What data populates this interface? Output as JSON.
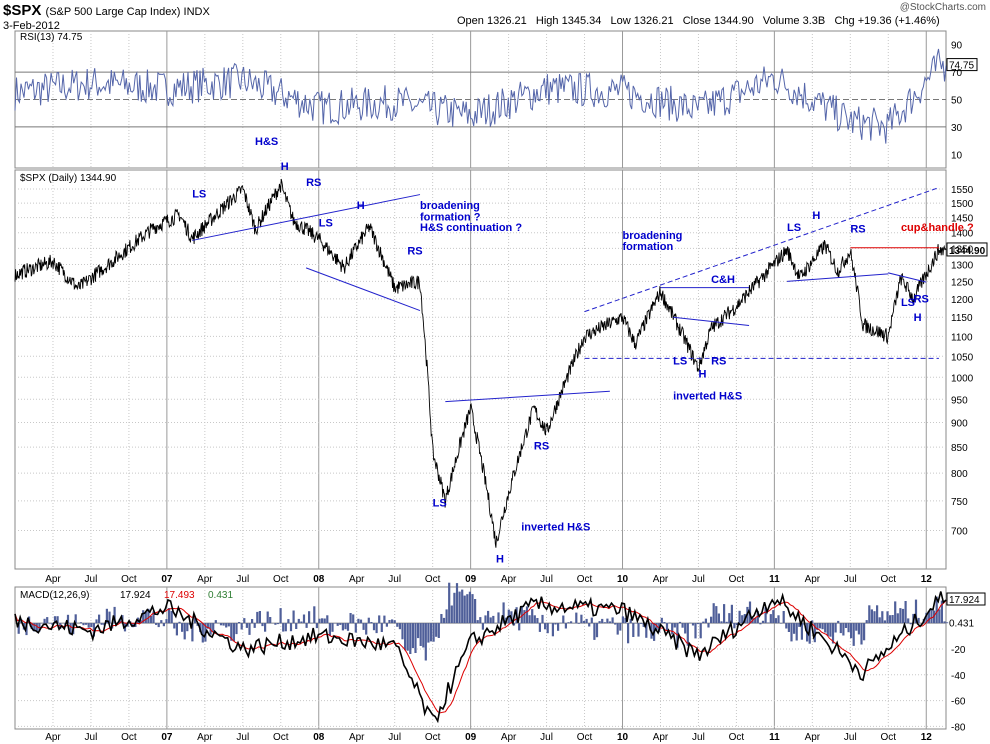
{
  "header": {
    "symbol": "$SPX",
    "name": "(S&P 500 Large Cap Index) INDX",
    "date": "3-Feb-2012",
    "watermark": "@StockCharts.com",
    "open_label": "Open",
    "open": "1326.21",
    "high_label": "High",
    "high": "1345.34",
    "low_label": "Low",
    "low": "1326.21",
    "close_label": "Close",
    "close": "1344.90",
    "volume_label": "Volume",
    "volume": "3.3B",
    "chg_label": "Chg",
    "chg": "+19.36 (+1.46%)"
  },
  "colors": {
    "price": "#000000",
    "annotation": "#0000cc",
    "trendline": "#2222cc",
    "red": "#dd0000",
    "rsi": "#5566aa",
    "macd": "#000000",
    "signal": "#dd0000",
    "histogram": "#4f5f99",
    "grid": "#c8c8c8",
    "bg": "#ffffff"
  },
  "chart_data": [
    {
      "type": "line",
      "panel": "rsi",
      "legend": "RSI(13) 74.75",
      "current_label": "74.75",
      "ylim": [
        0,
        100
      ],
      "yticks": [
        10,
        30,
        50,
        70,
        90
      ],
      "reference_lines": [
        30,
        50,
        70
      ],
      "x": [
        "2006-01",
        "2006-07",
        "2007-01",
        "2007-07",
        "2008-01",
        "2008-07",
        "2009-01",
        "2009-07",
        "2010-01",
        "2010-07",
        "2011-01",
        "2011-07",
        "2011-10",
        "2012-02"
      ],
      "values": [
        55,
        62,
        58,
        64,
        44,
        48,
        38,
        58,
        56,
        42,
        66,
        34,
        30,
        74.75
      ]
    },
    {
      "type": "line",
      "panel": "price",
      "legend": "$SPX (Daily) 1344.90",
      "current_label": "1344.90",
      "scale": "log",
      "ylim": [
        640,
        1620
      ],
      "yticks": [
        700,
        750,
        800,
        850,
        900,
        950,
        1000,
        1050,
        1100,
        1150,
        1200,
        1250,
        1300,
        1350,
        1400,
        1450,
        1500,
        1550
      ],
      "x": [
        "2006-01",
        "2006-04",
        "2006-06",
        "2006-09",
        "2006-12",
        "2007-02",
        "2007-03",
        "2007-07",
        "2007-08",
        "2007-10",
        "2007-11",
        "2008-01",
        "2008-03",
        "2008-05",
        "2008-07",
        "2008-09",
        "2008-10",
        "2008-11",
        "2009-01",
        "2009-03",
        "2009-06",
        "2009-07",
        "2009-10",
        "2010-01",
        "2010-02",
        "2010-04",
        "2010-07",
        "2010-08",
        "2010-10",
        "2010-12",
        "2011-02",
        "2011-03",
        "2011-05",
        "2011-06",
        "2011-07",
        "2011-08",
        "2011-10",
        "2011-11",
        "2011-12",
        "2012-02"
      ],
      "values": [
        1270,
        1310,
        1230,
        1320,
        1418,
        1460,
        1380,
        1550,
        1410,
        1565,
        1440,
        1380,
        1290,
        1420,
        1230,
        1250,
        840,
        750,
        930,
        680,
        930,
        880,
        1100,
        1150,
        1080,
        1220,
        1020,
        1120,
        1180,
        1260,
        1345,
        1260,
        1360,
        1280,
        1340,
        1130,
        1100,
        1260,
        1200,
        1344.9
      ],
      "annotations": [
        {
          "text": "LS",
          "date": "2007-03",
          "value": 1520
        },
        {
          "text": "H",
          "date": "2007-10",
          "value": 1620
        },
        {
          "text": "RS",
          "date": "2007-12",
          "value": 1560
        },
        {
          "text": "LS",
          "date": "2008-01",
          "value": 1420
        },
        {
          "text": "H",
          "date": "2008-04",
          "value": 1480
        },
        {
          "text": "RS",
          "date": "2008-08",
          "value": 1330
        },
        {
          "text": "broadening",
          "date": "2008-09",
          "value": 1480
        },
        {
          "text": "formation ?",
          "date": "2008-09",
          "value": 1440
        },
        {
          "text": "H&S continuation ?",
          "date": "2008-09",
          "value": 1405
        },
        {
          "text": "LS",
          "date": "2008-10",
          "value": 740
        },
        {
          "text": "H",
          "date": "2009-03",
          "value": 650
        },
        {
          "text": "RS",
          "date": "2009-06",
          "value": 845
        },
        {
          "text": "inverted H&S",
          "date": "2009-05",
          "value": 700
        },
        {
          "text": "broadening",
          "date": "2010-01",
          "value": 1380
        },
        {
          "text": "formation",
          "date": "2010-01",
          "value": 1345
        },
        {
          "text": "LS",
          "date": "2010-05",
          "value": 1030
        },
        {
          "text": "H",
          "date": "2010-07",
          "value": 1000
        },
        {
          "text": "RS",
          "date": "2010-08",
          "value": 1030
        },
        {
          "text": "inverted H&S",
          "date": "2010-05",
          "value": 950
        },
        {
          "text": "C&H",
          "date": "2010-08",
          "value": 1245
        },
        {
          "text": "LS",
          "date": "2011-02",
          "value": 1405
        },
        {
          "text": "H",
          "date": "2011-04",
          "value": 1445
        },
        {
          "text": "RS",
          "date": "2011-07",
          "value": 1400
        },
        {
          "text": "LS",
          "date": "2011-11",
          "value": 1180
        },
        {
          "text": "H",
          "date": "2011-12",
          "value": 1140
        },
        {
          "text": "RS",
          "date": "2011-12",
          "value": 1190
        },
        {
          "text": "cup&handle ?",
          "date": "2011-11",
          "value": 1405
        }
      ]
    },
    {
      "type": "line",
      "panel": "macd",
      "legend_name": "MACD(12,26,9)",
      "legend_macd": "17.924",
      "legend_signal": "17.493",
      "legend_hist": "0.431",
      "current_macd_label": "17.924",
      "current_hist_label": "0.431",
      "ylim": [
        -82,
        28
      ],
      "yticks": [
        -80,
        -60,
        -40,
        -20
      ],
      "x": [
        "2006-01",
        "2006-07",
        "2007-01",
        "2007-07",
        "2008-01",
        "2008-07",
        "2008-10",
        "2009-01",
        "2009-06",
        "2010-01",
        "2010-07",
        "2011-01",
        "2011-08",
        "2012-02"
      ],
      "series": [
        {
          "name": "MACD",
          "values": [
            2,
            -6,
            12,
            -20,
            -10,
            -18,
            -78,
            -15,
            14,
            10,
            -25,
            20,
            -38,
            17.924
          ]
        },
        {
          "name": "Signal",
          "values": [
            1,
            -4,
            10,
            -16,
            -12,
            -15,
            -62,
            -22,
            10,
            11,
            -20,
            18,
            -30,
            17.493
          ]
        }
      ]
    }
  ],
  "x_axis": {
    "labels_top": [
      "Apr",
      "Jul",
      "Oct",
      "07",
      "Apr",
      "Jul",
      "Oct",
      "08",
      "Apr",
      "Jul",
      "Oct",
      "09",
      "Apr",
      "Jul",
      "Oct",
      "10",
      "Apr",
      "Jul",
      "Oct",
      "11",
      "Apr",
      "Jul",
      "Oct",
      "12"
    ],
    "labels_bottom": [
      "Apr",
      "Jul",
      "Oct",
      "07",
      "Apr",
      "Jul",
      "Oct",
      "08",
      "Apr",
      "Jul",
      "Oct",
      "09",
      "Apr",
      "Jul",
      "Oct",
      "10",
      "Apr",
      "Jul",
      "Oct",
      "11",
      "Apr",
      "Jul",
      "Oct",
      "12"
    ]
  }
}
